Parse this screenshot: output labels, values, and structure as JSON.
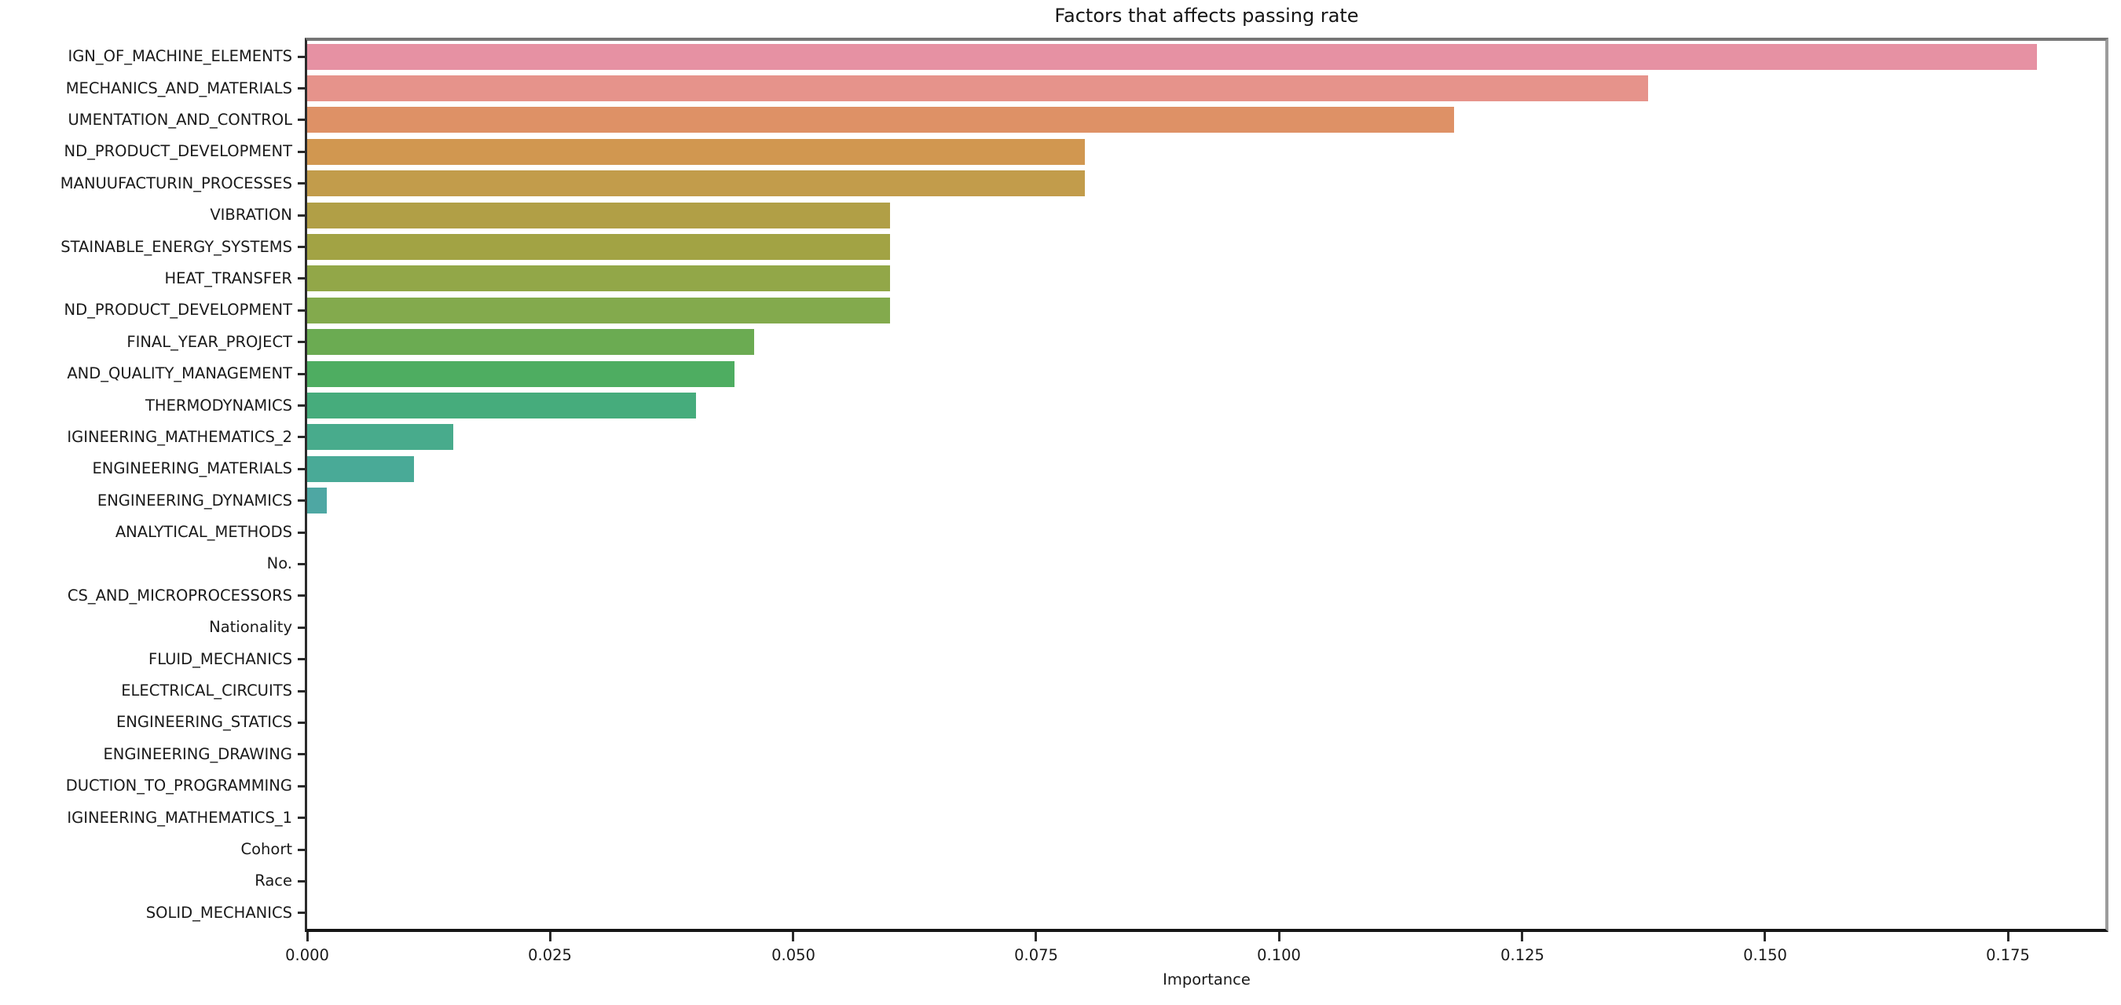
{
  "figure": {
    "title": "Factors that affects passing rate",
    "xlabel": "Importance"
  },
  "chart_data": {
    "type": "bar",
    "orientation": "horizontal",
    "title": "Factors that affects passing rate",
    "xlabel": "Importance",
    "ylabel": "",
    "xlim": [
      0,
      0.185
    ],
    "xtick_values": [
      0.0,
      0.025,
      0.05,
      0.075,
      0.1,
      0.125,
      0.15,
      0.175
    ],
    "xtick_labels": [
      "0.000",
      "0.025",
      "0.050",
      "0.075",
      "0.100",
      "0.125",
      "0.150",
      "0.175"
    ],
    "grid": false,
    "legend": false,
    "categories": [
      "IGN_OF_MACHINE_ELEMENTS",
      "MECHANICS_AND_MATERIALS",
      "UMENTATION_AND_CONTROL",
      "ND_PRODUCT_DEVELOPMENT",
      "MANUUFACTURIN_PROCESSES",
      "VIBRATION",
      "STAINABLE_ENERGY_SYSTEMS",
      "HEAT_TRANSFER",
      "ND_PRODUCT_DEVELOPMENT",
      "FINAL_YEAR_PROJECT",
      "AND_QUALITY_MANAGEMENT",
      "THERMODYNAMICS",
      "IGINEERING_MATHEMATICS_2",
      "ENGINEERING_MATERIALS",
      "ENGINEERING_DYNAMICS",
      "ANALYTICAL_METHODS",
      "No.",
      "CS_AND_MICROPROCESSORS",
      "Nationality",
      "FLUID_MECHANICS",
      "ELECTRICAL_CIRCUITS",
      "ENGINEERING_STATICS",
      "ENGINEERING_DRAWING",
      "DUCTION_TO_PROGRAMMING",
      "IGINEERING_MATHEMATICS_1",
      "Cohort",
      "Race",
      "SOLID_MECHANICS"
    ],
    "values": [
      0.178,
      0.138,
      0.118,
      0.08,
      0.08,
      0.06,
      0.06,
      0.06,
      0.06,
      0.046,
      0.044,
      0.04,
      0.015,
      0.011,
      0.002,
      0,
      0,
      0,
      0,
      0,
      0,
      0,
      0,
      0,
      0,
      0,
      0,
      0
    ],
    "bar_colors": [
      "#e691a3",
      "#e6938b",
      "#de9166",
      "#d19750",
      "#c29c4b",
      "#b19f46",
      "#a2a344",
      "#92a748",
      "#83aa4d",
      "#6bab52",
      "#4ead61",
      "#46ac7c",
      "#48ab8c",
      "#49aa97",
      "#4ea7a3",
      "",
      "",
      "",
      "",
      "",
      "",
      "",
      "",
      "",
      "",
      "",
      "",
      ""
    ]
  }
}
